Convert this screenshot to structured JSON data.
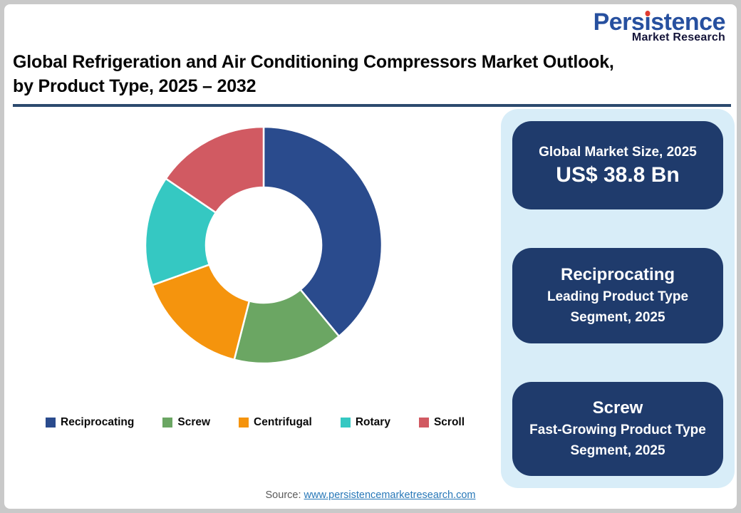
{
  "logo": {
    "name": "Persistence",
    "tagline": "Market Research",
    "name_color": "#27509f",
    "dot_color": "#e03c31"
  },
  "title": {
    "line1": "Global Refrigeration and Air Conditioning Compressors Market Outlook,",
    "line2": "by Product Type, 2025 – 2032"
  },
  "chart_data": {
    "type": "pie",
    "subtype": "donut",
    "title": "Global Refrigeration and Air Conditioning Compressors Market Outlook, by Product Type, 2025 – 2032",
    "categories": [
      "Reciprocating",
      "Screw",
      "Centrifugal",
      "Rotary",
      "Scroll"
    ],
    "values": [
      39,
      15,
      15.5,
      15,
      15.5
    ],
    "unit": "% share (estimated from arc angles)",
    "colors": [
      "#2a4b8d",
      "#6ba663",
      "#f5940d",
      "#35c8c2",
      "#d15a62"
    ],
    "start_angle_deg": 0,
    "direction": "clockwise",
    "inner_radius_ratio": 0.49,
    "legend_position": "bottom",
    "segment_gap_color": "#ffffff"
  },
  "sidebar": {
    "panel_color": "#d8edf8",
    "card_color": "#1f3b6c",
    "cards": [
      {
        "title": "Global Market Size, 2025",
        "value": "US$ 38.8 Bn"
      },
      {
        "title": "Reciprocating",
        "subtitle": "Leading Product Type Segment, 2025"
      },
      {
        "title": "Screw",
        "subtitle": "Fast-Growing Product Type Segment, 2025"
      }
    ]
  },
  "footer": {
    "source_label": "Source:",
    "source_link": "www.persistencemarketresearch.com"
  }
}
